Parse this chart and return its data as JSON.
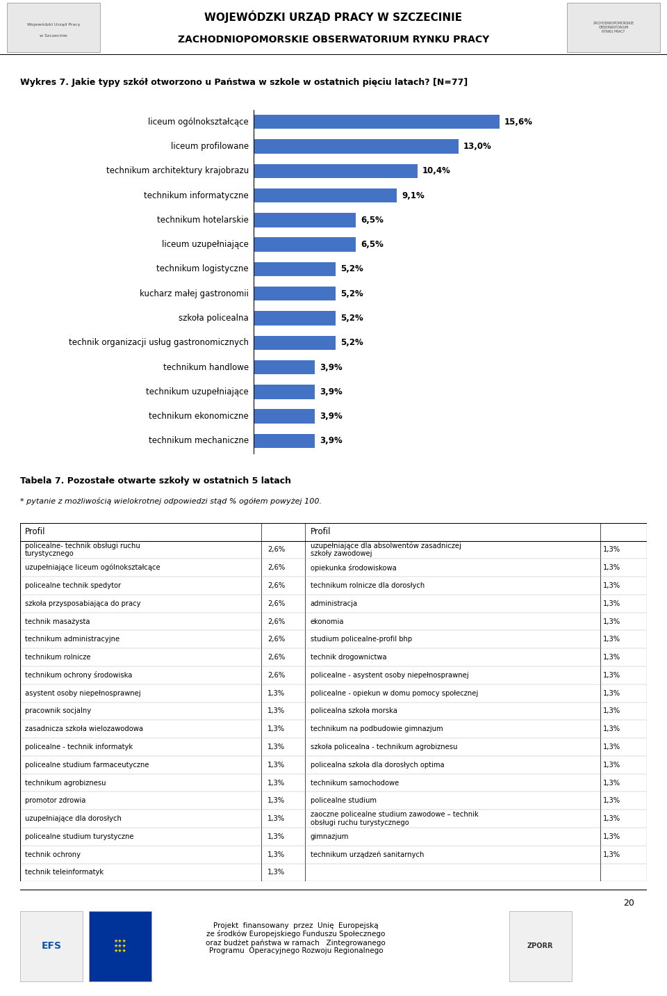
{
  "title_main": "WOJEWÓDZKI URZĄD PRACY W SZCZECINIE",
  "title_sub": "ZACHODNIOPOMORSKIE OBSERWATORIUM RYNKU PRACY",
  "chart_title": "Wykres 7. Jakie typy szkół otworzono u Państwa w szkole w ostatnich pięciu latach? [N=77]",
  "categories": [
    "liceum ogólnokształcące",
    "liceum profilowane",
    "technikum architektury krajobrazu",
    "technikum informatyczne",
    "technikum hotelarskie",
    "liceum uzupełniające",
    "technikum logistyczne",
    "kucharz małej gastronomii",
    "szkoła policealna",
    "technik organizacji usług gastronomicznych",
    "technikum handlowe",
    "technikum uzupełniające",
    "technikum ekonomiczne",
    "technikum mechaniczne"
  ],
  "values": [
    15.6,
    13.0,
    10.4,
    9.1,
    6.5,
    6.5,
    5.2,
    5.2,
    5.2,
    5.2,
    3.9,
    3.9,
    3.9,
    3.9
  ],
  "bar_color": "#4472C4",
  "value_labels": [
    "15,6%",
    "13,0%",
    "10,4%",
    "9,1%",
    "6,5%",
    "6,5%",
    "5,2%",
    "5,2%",
    "5,2%",
    "5,2%",
    "3,9%",
    "3,9%",
    "3,9%",
    "3,9%"
  ],
  "table_title": "Tabela 7. Pozostałe otwarte szkoły w ostatnich 5 latach",
  "table_subtitle": "* pytanie z możliwością wielokrotnej odpowiedzi stąd % ogółem powyżej 100.",
  "table_left": [
    [
      "policealne- technik obsługi ruchu\nturystycznego",
      "2,6%"
    ],
    [
      "uzupełniające liceum ogólnokształcące",
      "2,6%"
    ],
    [
      "policealne technik spedytor",
      "2,6%"
    ],
    [
      "szkoła przysposabiająca do pracy",
      "2,6%"
    ],
    [
      "technik masażysta",
      "2,6%"
    ],
    [
      "technikum administracyjne",
      "2,6%"
    ],
    [
      "technikum rolnicze",
      "2,6%"
    ],
    [
      "technikum ochrony środowiska",
      "2,6%"
    ],
    [
      "asystent osoby niepełnosprawnej",
      "1,3%"
    ],
    [
      "pracownik socjalny",
      "1,3%"
    ],
    [
      "zasadnicza szkoła wielozawodowa",
      "1,3%"
    ],
    [
      "policealne - technik informatyk",
      "1,3%"
    ],
    [
      "policealne studium farmaceutyczne",
      "1,3%"
    ],
    [
      "technikum agrobiznesu",
      "1,3%"
    ],
    [
      "promotor zdrowia",
      "1,3%"
    ],
    [
      "uzupełniające dla dorosłych",
      "1,3%"
    ],
    [
      "policealne studium turystyczne",
      "1,3%"
    ],
    [
      "technik ochrony",
      "1,3%"
    ],
    [
      "technik teleinformatyk",
      "1,3%"
    ]
  ],
  "table_right": [
    [
      "uzupełniające dla absolwentów zasadniczej\nszkoły zawodowej",
      "1,3%"
    ],
    [
      "opiekunka środowiskowa",
      "1,3%"
    ],
    [
      "technikum rolnicze dla dorosłych",
      "1,3%"
    ],
    [
      "administracja",
      "1,3%"
    ],
    [
      "ekonomia",
      "1,3%"
    ],
    [
      "studium policealne-profil bhp",
      "1,3%"
    ],
    [
      "technik drogownictwa",
      "1,3%"
    ],
    [
      "policealne - asystent osoby niepełnosprawnej",
      "1,3%"
    ],
    [
      "policealne - opiekun w domu pomocy społecznej",
      "1,3%"
    ],
    [
      "policealna szkoła morska",
      "1,3%"
    ],
    [
      "technikum na podbudowie gimnazjum",
      "1,3%"
    ],
    [
      "szkoła policealna - technikum agrobiznesu",
      "1,3%"
    ],
    [
      "policealna szkoła dla dorosłych optima",
      "1,3%"
    ],
    [
      "technikum samochodowe",
      "1,3%"
    ],
    [
      "policealne studium",
      "1,3%"
    ],
    [
      "zaoczne policealne studium zawodowe – technik\nobsługi ruchu turystycznego",
      "1,3%"
    ],
    [
      "gimnazjum",
      "1,3%"
    ],
    [
      "technikum urządzeń sanitarnych",
      "1,3%"
    ],
    [
      "",
      ""
    ]
  ],
  "footer_text": "Projekt  finansowany  przez  Unię  Europejską\nze środków Europejskiego Funduszu Społecznego\noraz budżet państwa w ramach   Zintegrowanego\nProgramu  Operacyjnego Rozwoju Regionalnego",
  "page_number": "20",
  "background_color": "#ffffff"
}
